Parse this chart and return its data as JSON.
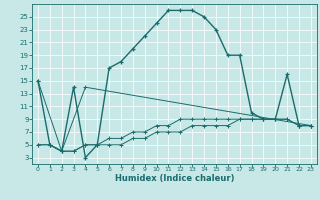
{
  "title": "",
  "xlabel": "Humidex (Indice chaleur)",
  "bg_color": "#c8e8e8",
  "line_color": "#1a6b6b",
  "xlim": [
    -0.5,
    23.5
  ],
  "ylim": [
    2,
    27
  ],
  "xticks": [
    0,
    1,
    2,
    3,
    4,
    5,
    6,
    7,
    8,
    9,
    10,
    11,
    12,
    13,
    14,
    15,
    16,
    17,
    18,
    19,
    20,
    21,
    22,
    23
  ],
  "yticks": [
    3,
    5,
    7,
    9,
    11,
    13,
    15,
    17,
    19,
    21,
    23,
    25
  ],
  "main_x": [
    0,
    1,
    2,
    3,
    4,
    5,
    6,
    7,
    8,
    9,
    10,
    11,
    12,
    13,
    14,
    15,
    16,
    17,
    18,
    19,
    20,
    21,
    22,
    23
  ],
  "main_y": [
    15,
    5,
    4,
    14,
    3,
    5,
    17,
    18,
    20,
    22,
    24,
    26,
    26,
    26,
    25,
    23,
    19,
    19,
    10,
    9,
    9,
    16,
    8,
    8
  ],
  "line2_x": [
    0,
    1,
    2,
    3,
    4,
    5,
    6,
    7,
    8,
    9,
    10,
    11,
    12,
    13,
    14,
    15,
    16,
    17,
    18,
    19,
    20,
    21,
    22,
    23
  ],
  "line2_y": [
    5,
    5,
    4,
    4,
    5,
    5,
    5,
    5,
    6,
    6,
    7,
    7,
    7,
    8,
    8,
    8,
    8,
    9,
    9,
    9,
    9,
    9,
    8,
    8
  ],
  "line3_x": [
    0,
    1,
    2,
    3,
    4,
    5,
    6,
    7,
    8,
    9,
    10,
    11,
    12,
    13,
    14,
    15,
    16,
    17,
    18,
    19,
    20,
    21,
    22,
    23
  ],
  "line3_y": [
    5,
    5,
    4,
    4,
    5,
    5,
    6,
    6,
    7,
    7,
    8,
    8,
    9,
    9,
    9,
    9,
    9,
    9,
    9,
    9,
    9,
    9,
    8,
    8
  ],
  "line4_x": [
    0,
    2,
    4,
    23
  ],
  "line4_y": [
    15,
    4,
    14,
    8
  ]
}
